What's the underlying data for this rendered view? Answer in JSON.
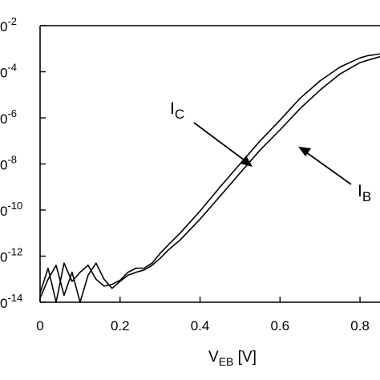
{
  "chart_data": {
    "type": "line",
    "title": "",
    "xlabel": {
      "main": "V",
      "sub": "EB",
      "rest": " [V]"
    },
    "ylabel": "",
    "xlim": [
      0,
      0.85
    ],
    "ylim": [
      1e-14,
      0.01
    ],
    "yscale": "log",
    "grid": false,
    "legend": "none",
    "xticks": [
      0,
      0.2,
      0.4,
      0.6,
      0.8
    ],
    "xtick_labels": [
      "0",
      "0.2",
      "0.4",
      "0.6",
      "0.8"
    ],
    "yticks": [
      0.01,
      0.0001,
      1e-06,
      1e-08,
      1e-10,
      1e-12,
      1e-14
    ],
    "ytick_labels": [
      {
        "base": "0",
        "exp": "-2"
      },
      {
        "base": "0",
        "exp": "-4"
      },
      {
        "base": "0",
        "exp": "-6"
      },
      {
        "base": "0",
        "exp": "-8"
      },
      {
        "base": "0",
        "exp": "-10"
      },
      {
        "base": "0",
        "exp": "-12"
      },
      {
        "base": "0",
        "exp": "-14"
      }
    ],
    "series": [
      {
        "name": "I_C",
        "label_main": "I",
        "label_sub": "C",
        "color": "#000000",
        "x": [
          0.0,
          0.02,
          0.04,
          0.06,
          0.08,
          0.1,
          0.12,
          0.14,
          0.16,
          0.18,
          0.2,
          0.22,
          0.24,
          0.26,
          0.28,
          0.3,
          0.32,
          0.35,
          0.4,
          0.45,
          0.5,
          0.55,
          0.6,
          0.65,
          0.7,
          0.75,
          0.8,
          0.82,
          0.84,
          0.85
        ],
        "y": [
          2.5e-14,
          3e-13,
          1e-14,
          5e-13,
          8e-14,
          2e-13,
          4e-13,
          1e-13,
          5e-14,
          6e-14,
          9e-14,
          2e-13,
          3e-13,
          3e-13,
          5e-13,
          1.3e-12,
          3e-12,
          1e-11,
          9e-11,
          1e-09,
          1e-08,
          1e-07,
          8e-07,
          7e-06,
          4e-05,
          0.00016,
          0.0004,
          0.0005,
          0.00056,
          0.0006
        ]
      },
      {
        "name": "I_B",
        "label_main": "I",
        "label_sub": "B",
        "color": "#000000",
        "x": [
          0.0,
          0.02,
          0.04,
          0.06,
          0.08,
          0.1,
          0.12,
          0.14,
          0.16,
          0.18,
          0.2,
          0.22,
          0.24,
          0.26,
          0.28,
          0.3,
          0.32,
          0.35,
          0.4,
          0.45,
          0.5,
          0.55,
          0.6,
          0.65,
          0.7,
          0.75,
          0.8,
          0.82,
          0.84,
          0.85
        ],
        "y": [
          1.5e-14,
          1e-13,
          4e-13,
          2e-14,
          2e-13,
          1e-14,
          1.5e-13,
          5e-13,
          1e-13,
          4e-14,
          8e-14,
          1.5e-13,
          2e-13,
          2.5e-13,
          4e-13,
          8e-13,
          1.8e-12,
          5e-12,
          4e-11,
          4e-10,
          4e-09,
          4e-08,
          3e-07,
          2.5e-06,
          1.6e-05,
          8e-05,
          0.00025,
          0.00032,
          0.0004,
          0.00045
        ]
      }
    ],
    "annotations": [
      {
        "series": "I_C",
        "main": "I",
        "sub": "C"
      },
      {
        "series": "I_B",
        "main": "I",
        "sub": "B"
      }
    ]
  }
}
